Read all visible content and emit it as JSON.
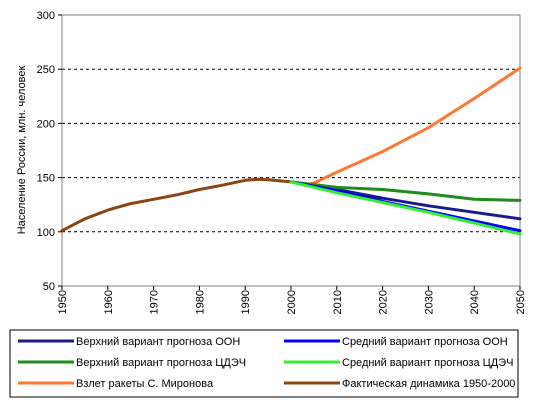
{
  "chart_data": {
    "type": "line",
    "title": "",
    "xlabel": "",
    "ylabel": "Население России, млн. человек",
    "xlim": [
      1950,
      2050
    ],
    "ylim": [
      50,
      300
    ],
    "x_ticks": [
      "1950",
      "1960",
      "1970",
      "1980",
      "1990",
      "2000",
      "2010",
      "2020",
      "2030",
      "2040",
      "2050"
    ],
    "y_ticks": [
      "50",
      "100",
      "150",
      "200",
      "250",
      "300"
    ],
    "grid": "horizontal dashed",
    "legend_position": "bottom",
    "series": [
      {
        "name": "Верхний вариант прогноза ООН",
        "color": "#1a1a8c",
        "x": [
          2000,
          2010,
          2020,
          2030,
          2040,
          2050
        ],
        "y": [
          146,
          139,
          131,
          124,
          118,
          112
        ]
      },
      {
        "name": "Средний вариант прогноза ООН",
        "color": "#0000ff",
        "x": [
          2000,
          2010,
          2020,
          2030,
          2040,
          2050
        ],
        "y": [
          146,
          138,
          128,
          119,
          110,
          101
        ]
      },
      {
        "name": "Верхний вариант прогноза ЦДЭЧ",
        "color": "#1e8c1e",
        "x": [
          2000,
          2010,
          2020,
          2030,
          2040,
          2050
        ],
        "y": [
          146,
          141,
          139,
          135,
          130,
          129
        ]
      },
      {
        "name": "Средний вариант прогноза ЦДЭЧ",
        "color": "#33ee33",
        "x": [
          2000,
          2010,
          2020,
          2030,
          2040,
          2050
        ],
        "y": [
          146,
          136,
          127,
          118,
          108,
          98
        ]
      },
      {
        "name": "Взлет ракеты С. Миронова",
        "color": "#ff7733",
        "x": [
          2003,
          2005,
          2010,
          2020,
          2030,
          2040,
          2050
        ],
        "y": [
          143,
          145,
          155,
          174,
          196,
          223,
          251
        ]
      },
      {
        "name": "Фактическая динамика 1950-2000",
        "color": "#8b4513",
        "x": [
          1950,
          1955,
          1960,
          1965,
          1970,
          1975,
          1980,
          1985,
          1990,
          1993,
          1995,
          2000
        ],
        "y": [
          101,
          112,
          120,
          126,
          130,
          134,
          139,
          143,
          147.5,
          148.5,
          148,
          146
        ]
      }
    ]
  }
}
